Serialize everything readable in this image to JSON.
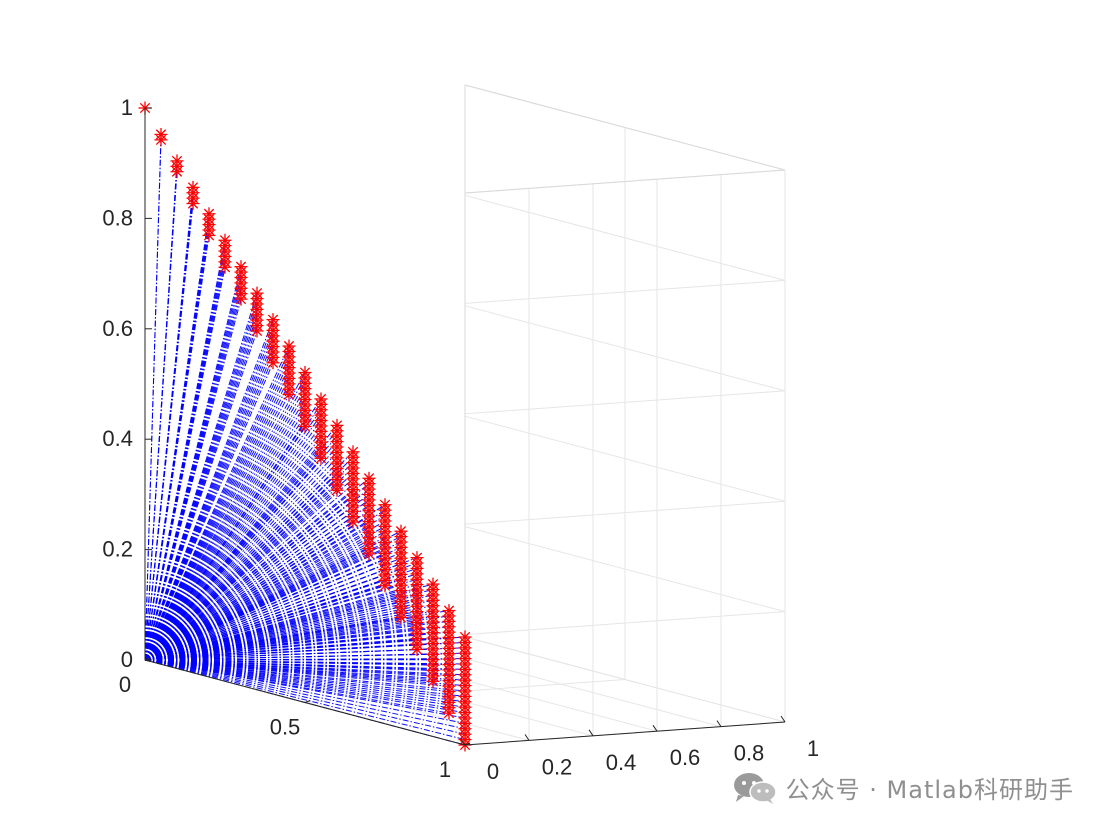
{
  "chart_data": {
    "type": "3d-line-scatter",
    "title": "",
    "xlabel": "",
    "ylabel": "",
    "zlabel": "",
    "description": "Blue dash-dot lines from the origin (0,0,0) to points on the unit simplex x+y+z=1; each point is marked with a red asterisk.",
    "grid": true,
    "axes": {
      "x": {
        "range": [
          0,
          1
        ],
        "ticks": [
          0,
          0.2,
          0.4,
          0.6,
          0.8,
          1
        ],
        "tick_labels": [
          "0",
          "0.2",
          "0.4",
          "0.6",
          "0.8",
          "1"
        ]
      },
      "y": {
        "range": [
          0,
          1
        ],
        "ticks": [
          0,
          0.5,
          1
        ],
        "tick_labels": [
          "0",
          "0.5",
          "1"
        ]
      },
      "z": {
        "range": [
          0,
          1
        ],
        "ticks": [
          0,
          0.2,
          0.4,
          0.6,
          0.8,
          1
        ],
        "tick_labels": [
          "0",
          "0.2",
          "0.4",
          "0.6",
          "0.8",
          "1"
        ]
      }
    },
    "series": [
      {
        "role": "rays",
        "style": "dash-dot",
        "color": "#0000ff",
        "from": [
          0,
          0,
          0
        ],
        "to": "simplex_points"
      },
      {
        "role": "simplex_points",
        "marker": "asterisk",
        "color": "#ff0000"
      }
    ],
    "simplex_divisions": 20
  },
  "watermark": {
    "icon": "wechat-icon",
    "text": "公众号 · Matlab科研助手"
  },
  "colors": {
    "ray": "#0000ff",
    "marker": "#ff0000",
    "grid": "#e6e6e6",
    "axis": "#262626"
  }
}
